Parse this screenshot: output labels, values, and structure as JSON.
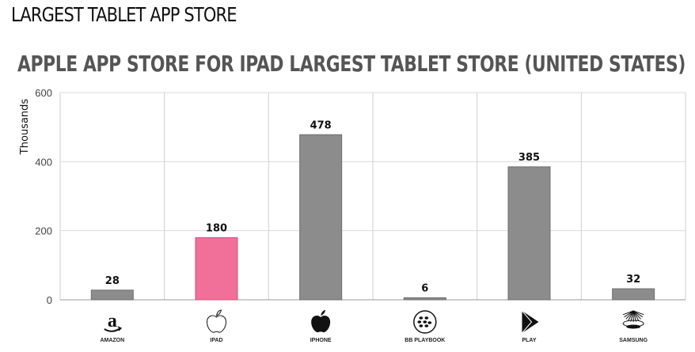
{
  "header": {
    "title": "LARGEST TABLET APP STORE"
  },
  "chart_data": {
    "type": "bar",
    "title": "APPLE APP STORE FOR IPAD LARGEST TABLET STORE (UNITED STATES)",
    "ylabel": "Thousands",
    "xlabel": "",
    "ylim": [
      0,
      600
    ],
    "yticks": [
      0,
      200,
      400,
      600
    ],
    "categories": [
      "AMAZON",
      "IPAD",
      "IPHONE",
      "BB PLAYBOOK",
      "PLAY",
      "SAMSUNG"
    ],
    "icons": [
      "amazon-icon",
      "apple-icon",
      "apple-icon",
      "blackberry-icon",
      "play-icon",
      "samsung-icon"
    ],
    "values": [
      28,
      180,
      478,
      6,
      385,
      32
    ],
    "value_labels": [
      "28",
      "180",
      "478",
      "6",
      "385",
      "32"
    ],
    "bar_colors": [
      "#8c8c8c",
      "#f07099",
      "#8c8c8c",
      "#8c8c8c",
      "#8c8c8c",
      "#8c8c8c"
    ],
    "grid": true,
    "legend": "none"
  }
}
